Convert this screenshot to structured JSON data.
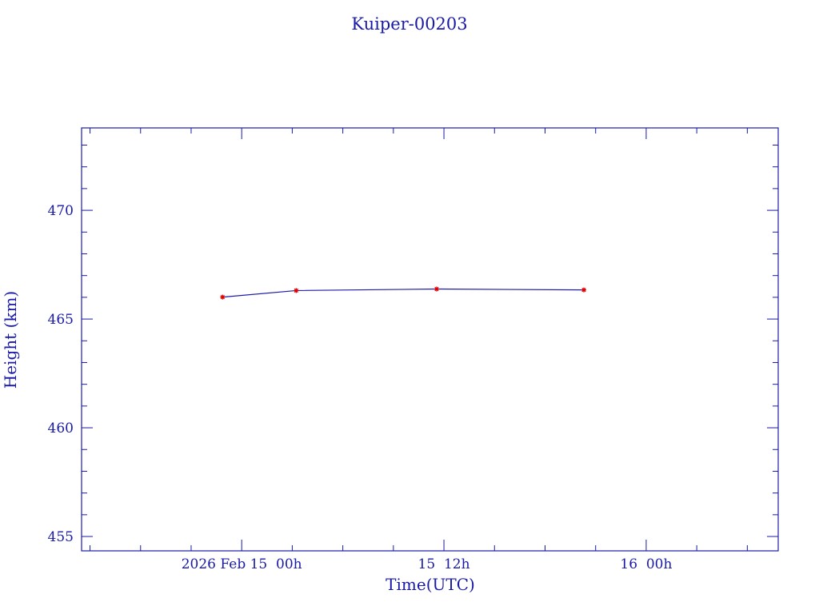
{
  "chart_data": {
    "type": "line",
    "title": "Kuiper-00203",
    "xlabel": "Time(UTC)",
    "ylabel": "Height (km)",
    "x_range": [
      "2026-02-14T14:30",
      "2026-02-16T07:50"
    ],
    "ylim": [
      454.34,
      473.79
    ],
    "y_ticks": [
      455,
      460,
      465,
      470
    ],
    "y_tick_labels": [
      "455",
      "460",
      "465",
      "470"
    ],
    "x_ticks": [
      "2026-02-15T00:00",
      "2026-02-15T12:00",
      "2026-02-16T00:00"
    ],
    "x_tick_labels": [
      "2026 Feb 15  00h",
      "15  12h",
      "16  00h"
    ],
    "grid": false,
    "line_color": "#1a1aa8",
    "marker_color": "#e00000",
    "series": [
      {
        "x": [
          "2026-02-14T22:52",
          "2026-02-15T03:14",
          "2026-02-15T11:34",
          "2026-02-15T20:18"
        ],
        "y": [
          466.01,
          466.31,
          466.38,
          466.34
        ]
      }
    ]
  }
}
